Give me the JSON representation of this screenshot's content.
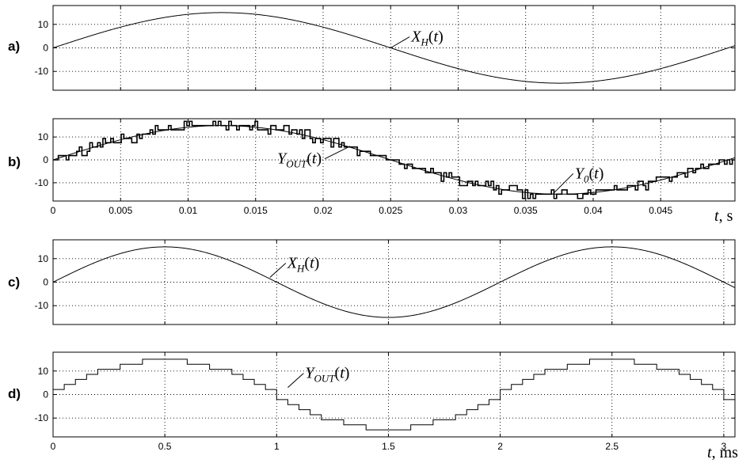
{
  "chart_data": [
    {
      "type": "line",
      "panel_label": "a)",
      "xlim": [
        0,
        0.0505
      ],
      "ylim": [
        -18,
        18
      ],
      "yticks": [
        -10,
        0,
        10
      ],
      "xticks": [
        0,
        0.005,
        0.01,
        0.015,
        0.02,
        0.025,
        0.03,
        0.035,
        0.04,
        0.045
      ],
      "grid": true,
      "show_xtick_labels": false,
      "series": [
        {
          "name": "X_H(t)",
          "kind": "sine",
          "amplitude": 15,
          "frequency_hz": 20,
          "x_start": 0,
          "x_end": 0.0505
        }
      ],
      "annotations": [
        {
          "text": "X_H(t)",
          "main": "X",
          "sub": "H",
          "rest": "(t)",
          "x": 0.025,
          "y": 0
        }
      ]
    },
    {
      "type": "line",
      "panel_label": "b)",
      "xlim": [
        0,
        0.0505
      ],
      "ylim": [
        -18,
        18
      ],
      "yticks": [
        -10,
        0,
        10
      ],
      "xticks": [
        0,
        0.005,
        0.01,
        0.015,
        0.02,
        0.025,
        0.03,
        0.035,
        0.04,
        0.045
      ],
      "xtick_labels": [
        "0",
        "0.005",
        "0.01",
        "0.015",
        "0.02",
        "0.025",
        "0.03",
        "0.035",
        "0.04",
        "0.045"
      ],
      "xlabel": "t, s",
      "grid": true,
      "series": [
        {
          "name": "Y_OUT(t)",
          "kind": "quantized-sine",
          "amplitude": 15,
          "frequency_hz": 20,
          "levels": 16,
          "x_start": 0,
          "x_end": 0.0505
        },
        {
          "name": "Y_0(t)",
          "kind": "sine",
          "amplitude": 15,
          "frequency_hz": 20,
          "x_start": 0,
          "x_end": 0.0505
        }
      ],
      "annotations": [
        {
          "text": "Y_OUT(t)",
          "main": "Y",
          "sub": "OUT",
          "rest": "(t)",
          "x": 0.022,
          "y": 6
        },
        {
          "text": "Y_0(t)",
          "main": "Y",
          "sub": "0",
          "rest": "(t)",
          "x": 0.037,
          "y": -15
        }
      ]
    },
    {
      "type": "line",
      "panel_label": "c)",
      "xlim": [
        0,
        3.05
      ],
      "ylim": [
        -18,
        18
      ],
      "yticks": [
        -10,
        0,
        10
      ],
      "xticks": [
        0,
        0.5,
        1,
        1.5,
        2,
        2.5,
        3
      ],
      "grid": true,
      "show_xtick_labels": false,
      "series": [
        {
          "name": "X_H(t)",
          "kind": "sine",
          "amplitude": 15,
          "frequency_hz": 500,
          "x_start": 0,
          "x_end": 3.05
        }
      ],
      "annotations": [
        {
          "text": "X_H(t)",
          "main": "X",
          "sub": "H",
          "rest": "(t)",
          "x": 0.97,
          "y": 2
        }
      ]
    },
    {
      "type": "line",
      "panel_label": "d)",
      "xlim": [
        0,
        3.05
      ],
      "ylim": [
        -18,
        18
      ],
      "yticks": [
        -10,
        0,
        10
      ],
      "xticks": [
        0,
        0.5,
        1,
        1.5,
        2,
        2.5,
        3
      ],
      "xtick_labels": [
        "0",
        "0.5",
        "1",
        "1.5",
        "2",
        "2.5",
        "3"
      ],
      "xlabel": "t, ms",
      "grid": true,
      "series": [
        {
          "name": "Y_OUT(t)",
          "kind": "staircase-sine",
          "amplitude": 15,
          "frequency_hz": 500,
          "step_ms": 0.05,
          "levels": 15,
          "x_start": 0,
          "x_end": 3.05
        }
      ],
      "annotations": [
        {
          "text": "Y_OUT(t)",
          "main": "Y",
          "sub": "OUT",
          "rest": "(t)",
          "x": 1.05,
          "y": 3
        }
      ]
    }
  ]
}
